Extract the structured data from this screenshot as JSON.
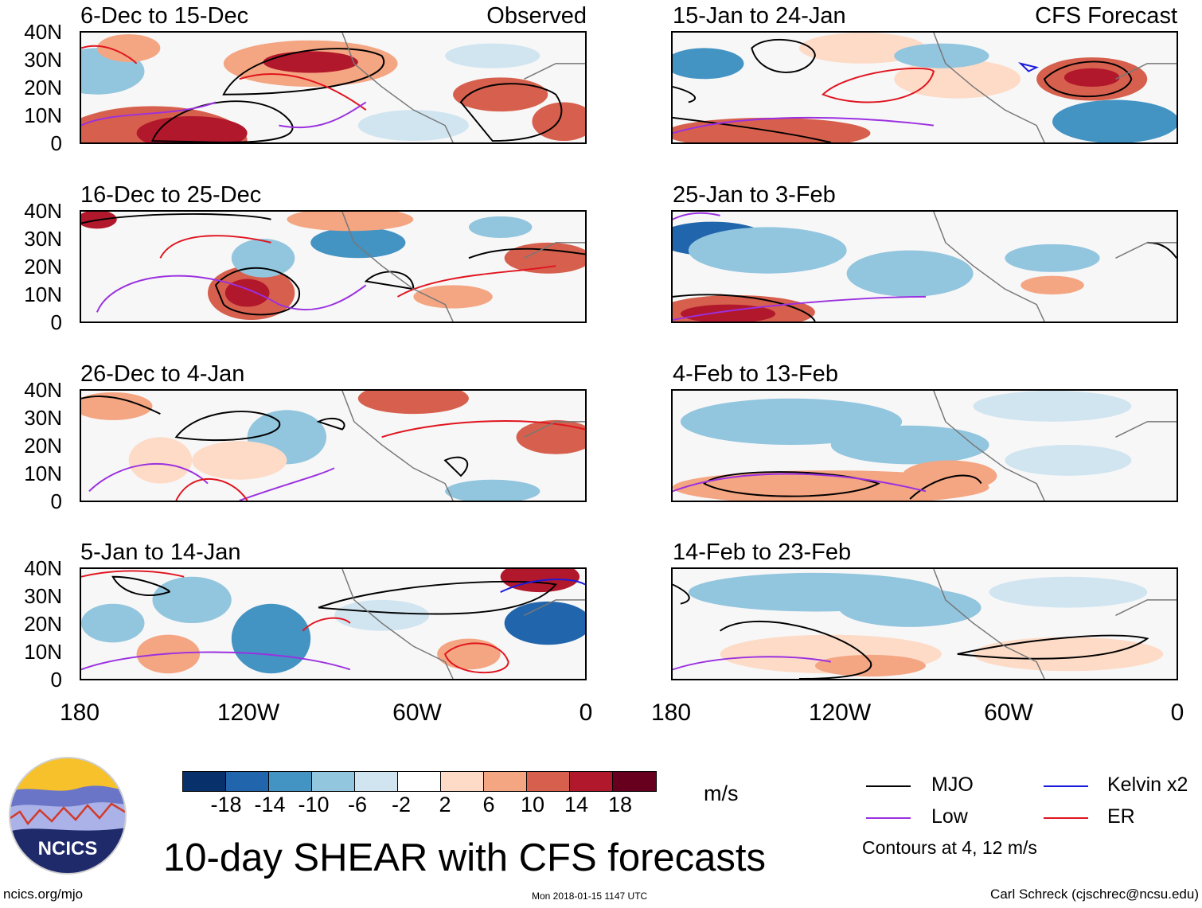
{
  "panels_left": [
    {
      "title": "6-Dec to 15-Dec",
      "tag": "Observed"
    },
    {
      "title": "16-Dec to 25-Dec",
      "tag": ""
    },
    {
      "title": "26-Dec to 4-Jan",
      "tag": ""
    },
    {
      "title": "5-Jan to 14-Jan",
      "tag": ""
    }
  ],
  "panels_right": [
    {
      "title": "15-Jan to 24-Jan",
      "tag": "CFS Forecast"
    },
    {
      "title": "25-Jan to 3-Feb",
      "tag": ""
    },
    {
      "title": "4-Feb to 13-Feb",
      "tag": ""
    },
    {
      "title": "14-Feb to 23-Feb",
      "tag": ""
    }
  ],
  "lat_labels": [
    "40N",
    "30N",
    "20N",
    "10N",
    "0"
  ],
  "lon_labels": [
    "180",
    "120W",
    "60W",
    "0"
  ],
  "colorbar": {
    "colors": [
      "#08306b",
      "#2166ac",
      "#4393c3",
      "#92c5de",
      "#d1e5f0",
      "#ffffff",
      "#fddbc7",
      "#f4a582",
      "#d6604d",
      "#b2182b",
      "#67001f"
    ],
    "labels": [
      "-18",
      "-14",
      "-10",
      "-6",
      "-2",
      "2",
      "6",
      "10",
      "14",
      "18"
    ],
    "units": "m/s"
  },
  "main_title": "10-day SHEAR with CFS forecasts",
  "legend": [
    {
      "label": "MJO",
      "color": "#000000"
    },
    {
      "label": "Kelvin x2",
      "color": "#1a1adb"
    },
    {
      "label": "Low",
      "color": "#9b30e0"
    },
    {
      "label": "ER",
      "color": "#e0141e"
    }
  ],
  "contour_note": "Contours at 4, 12 m/s",
  "footer": {
    "left": "ncics.org/mjo",
    "center": "Mon 2018-01-15 1147 UTC",
    "right": "Carl Schreck (cjschrec@ncsu.edu)"
  },
  "logo_text": "NCICS"
}
